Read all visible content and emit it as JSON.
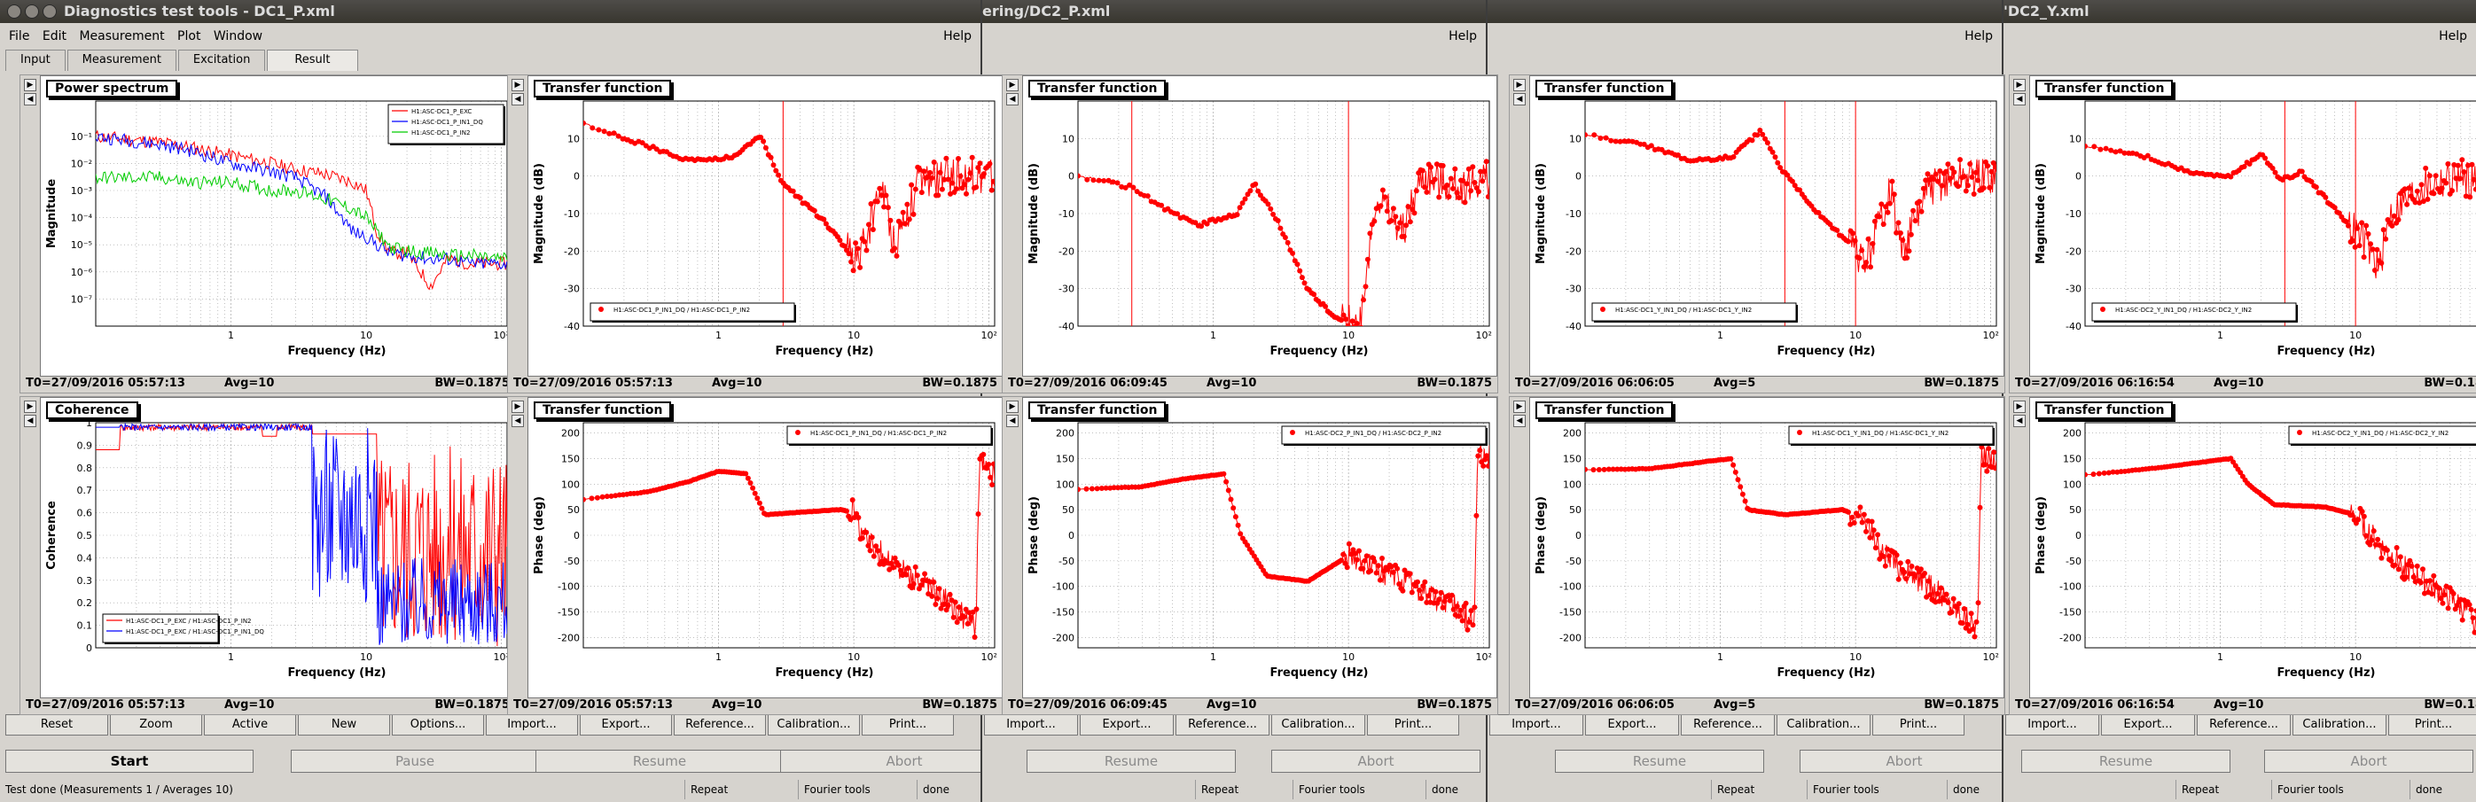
{
  "windows": [
    {
      "title": "Diagnostics test tools - DC1_P.xml",
      "menu": [
        "File",
        "Edit",
        "Measurement",
        "Plot",
        "Window"
      ],
      "help": "Help",
      "tabs": [
        "Input",
        "Measurement",
        "Excitation",
        "Result"
      ],
      "buttons": [
        "Reset",
        "Zoom",
        "Active",
        "New",
        "Options...",
        "Import...",
        "Export...",
        "Reference...",
        "Calibration...",
        "Print..."
      ],
      "controls": [
        "Start",
        "Pause",
        "Resume",
        "Abort"
      ],
      "status": {
        "text": "Test done (Measurements 1 / Averages 10)",
        "repeat": "Repeat",
        "fourier": "Fourier tools",
        "done": "done"
      }
    },
    {
      "title": "ering/DC2_P.xml",
      "help": "Help",
      "buttons": [
        "Import...",
        "Export...",
        "Reference...",
        "Calibration...",
        "Print..."
      ],
      "controls": [
        "Resume",
        "Abort"
      ],
      "status": {
        "repeat": "Repeat",
        "fourier": "Fourier tools",
        "done": "done"
      }
    },
    {
      "title": "",
      "help": "Help",
      "buttons": [
        "Import...",
        "Export...",
        "Reference...",
        "Calibration...",
        "Print..."
      ],
      "controls": [
        "Resume",
        "Abort"
      ],
      "status": {
        "repeat": "Repeat",
        "fourier": "Fourier tools",
        "done": "done"
      }
    },
    {
      "title": "'DC2_Y.xml",
      "help": "Help",
      "buttons": [
        "Import...",
        "Export...",
        "Reference...",
        "Calibration...",
        "Print..."
      ],
      "controls": [
        "Resume",
        "Abort"
      ],
      "status": {
        "repeat": "Repeat",
        "fourier": "Fourier tools",
        "done": "done"
      }
    }
  ],
  "panels": [
    {
      "title": "Power spectrum",
      "t0": "T0=27/09/2016 05:57:13",
      "avg": "Avg=10",
      "bw": "BW=0.1875"
    },
    {
      "title": "Coherence",
      "t0": "T0=27/09/2016 05:57:13",
      "avg": "Avg=10",
      "bw": "BW=0.1875"
    },
    {
      "title": "Transfer function",
      "t0": "T0=27/09/2016 05:57:13",
      "avg": "Avg=10",
      "bw": "BW=0.1875"
    },
    {
      "title": "Transfer function",
      "t0": "T0=27/09/2016 05:57:13",
      "avg": "Avg=10",
      "bw": "BW=0.1875"
    },
    {
      "title": "Transfer function",
      "t0": "T0=27/09/2016 06:09:45",
      "avg": "Avg=10",
      "bw": "BW=0.1875"
    },
    {
      "title": "Transfer function",
      "t0": "T0=27/09/2016 06:09:45",
      "avg": "Avg=10",
      "bw": "BW=0.1875"
    },
    {
      "title": "Transfer function",
      "t0": "T0=27/09/2016 06:06:05",
      "avg": "Avg=5",
      "bw": "BW=0.1875"
    },
    {
      "title": "Transfer function",
      "t0": "T0=27/09/2016 06:06:05",
      "avg": "Avg=5",
      "bw": "BW=0.1875"
    },
    {
      "title": "Transfer function",
      "t0": "T0=27/09/2016 06:16:54",
      "avg": "Avg=10",
      "bw": "BW=0.1875"
    },
    {
      "title": "Transfer function",
      "t0": "T0=27/09/2016 06:16:54",
      "avg": "Avg=10",
      "bw": "BW=0.1875"
    }
  ],
  "colors": {
    "red": "#ff0000",
    "blue": "#0000ff",
    "green": "#00cc00"
  },
  "chart_data": [
    {
      "type": "line",
      "title": "Power spectrum",
      "xlabel": "Frequency (Hz)",
      "ylabel": "Magnitude",
      "xscale": "log",
      "yscale": "log",
      "xlim": [
        0.1,
        110
      ],
      "ylim": [
        1e-08,
        2
      ],
      "yticks": [
        "10⁻⁷",
        "10⁻⁶",
        "10⁻⁵",
        "10⁻⁴",
        "10⁻³",
        "10⁻²",
        "10⁻¹"
      ],
      "xticks": [
        "1",
        "10",
        "10²"
      ],
      "legend": "top-right",
      "series": [
        {
          "name": "H1:ASC-DC1_P_EXC",
          "color": "#ff0000",
          "x": [
            0.1,
            0.3,
            0.5,
            1,
            2,
            3,
            5,
            8,
            10,
            12,
            15,
            20,
            30,
            40,
            60,
            100
          ],
          "y": [
            0.1,
            0.06,
            0.04,
            0.02,
            0.01,
            0.006,
            0.004,
            0.002,
            0.001,
            3e-05,
            5e-06,
            5e-06,
            3e-07,
            3e-06,
            2e-06,
            2e-06
          ]
        },
        {
          "name": "H1:ASC-DC1_P_IN1_DQ",
          "color": "#0000ff",
          "x": [
            0.1,
            0.3,
            0.5,
            1,
            2,
            3,
            5,
            8,
            10,
            12,
            15,
            20,
            30,
            40,
            60,
            100
          ],
          "y": [
            0.1,
            0.05,
            0.03,
            0.01,
            0.005,
            0.003,
            0.0006,
            3e-05,
            2e-05,
            1e-05,
            5e-06,
            4e-06,
            3e-06,
            3e-06,
            2e-06,
            2e-06
          ]
        },
        {
          "name": "H1:ASC-DC1_P_IN2",
          "color": "#00cc00",
          "x": [
            0.1,
            0.3,
            0.5,
            1,
            2,
            3,
            5,
            8,
            10,
            12,
            15,
            20,
            30,
            40,
            60,
            100
          ],
          "y": [
            0.003,
            0.003,
            0.002,
            0.002,
            0.001,
            0.001,
            0.0005,
            0.0002,
            0.0001,
            3e-05,
            8e-06,
            6e-06,
            5e-06,
            4e-06,
            4e-06,
            3e-06
          ]
        }
      ]
    },
    {
      "type": "line",
      "title": "Coherence",
      "xlabel": "Frequency (Hz)",
      "ylabel": "Coherence",
      "xscale": "log",
      "xlim": [
        0.1,
        110
      ],
      "ylim": [
        0,
        1
      ],
      "yticks": [
        "0",
        "0.1",
        "0.2",
        "0.3",
        "0.4",
        "0.5",
        "0.6",
        "0.7",
        "0.8",
        "0.9",
        "1"
      ],
      "xticks": [
        "1",
        "10",
        "10²"
      ],
      "legend": "bottom-left",
      "series": [
        {
          "name": "H1:ASC-DC1_P_EXC / H1:ASC-DC1_P_IN2",
          "color": "#ff0000"
        },
        {
          "name": "H1:ASC-DC1_P_EXC / H1:ASC-DC1_P_IN1_DQ",
          "color": "#0000ff"
        }
      ]
    },
    {
      "type": "scatter",
      "title": "Transfer function",
      "xlabel": "Frequency (Hz)",
      "ylabel": "Magnitude (dB)",
      "xscale": "log",
      "xlim": [
        0.1,
        110
      ],
      "ylim": [
        -40,
        20
      ],
      "yticks": [
        "-40",
        "-30",
        "-20",
        "-10",
        "0",
        "10"
      ],
      "xticks": [
        "1",
        "10",
        "10²"
      ],
      "legend": "bottom-left",
      "series": [
        {
          "name": "H1:ASC-DC1_P_IN1_DQ / H1:ASC-DC1_P_IN2",
          "color": "#ff0000"
        }
      ]
    },
    {
      "type": "scatter",
      "title": "Transfer function",
      "xlabel": "Frequency (Hz)",
      "ylabel": "Phase (deg)",
      "xscale": "log",
      "xlim": [
        0.1,
        110
      ],
      "ylim": [
        -220,
        220
      ],
      "yticks": [
        "-200",
        "-150",
        "-100",
        "-50",
        "0",
        "50",
        "100",
        "150",
        "200"
      ],
      "xticks": [
        "1",
        "10",
        "10²"
      ],
      "legend": "top-right",
      "series": [
        {
          "name": "H1:ASC-DC1_P_IN1_DQ / H1:ASC-DC1_P_IN2",
          "color": "#ff0000"
        }
      ]
    },
    {
      "type": "scatter",
      "title": "Transfer function",
      "xlabel": "Frequency (Hz)",
      "ylabel": "Magnitude (dB)",
      "xscale": "log",
      "xlim": [
        0.1,
        110
      ],
      "ylim": [
        -40,
        20
      ],
      "yticks": [
        "-40",
        "-30",
        "-20",
        "-10",
        "0",
        "10"
      ],
      "xticks": [
        "1",
        "10",
        "10²"
      ],
      "series": []
    },
    {
      "type": "scatter",
      "title": "Transfer function",
      "xlabel": "Frequency (Hz)",
      "ylabel": "Phase (deg)",
      "xscale": "log",
      "xlim": [
        0.1,
        110
      ],
      "ylim": [
        -220,
        220
      ],
      "yticks": [
        "-200",
        "-150",
        "-100",
        "-50",
        "0",
        "50",
        "100",
        "150",
        "200"
      ],
      "xticks": [
        "1",
        "10",
        "10²"
      ],
      "legend": "top-right",
      "series": [
        {
          "name": "H1:ASC-DC2_P_IN1_DQ / H1:ASC-DC2_P_IN2",
          "color": "#ff0000"
        }
      ]
    },
    {
      "type": "scatter",
      "title": "Transfer function",
      "xlabel": "Frequency (Hz)",
      "ylabel": "Magnitude (dB)",
      "xscale": "log",
      "xlim": [
        0.1,
        110
      ],
      "ylim": [
        -40,
        20
      ],
      "yticks": [
        "-40",
        "-30",
        "-20",
        "-10",
        "0",
        "10"
      ],
      "xticks": [
        "1",
        "10",
        "10²"
      ],
      "legend": "bottom-left",
      "series": [
        {
          "name": "H1:ASC-DC1_Y_IN1_DQ / H1:ASC-DC1_Y_IN2",
          "color": "#ff0000"
        }
      ]
    },
    {
      "type": "scatter",
      "title": "Transfer function",
      "xlabel": "Frequency (Hz)",
      "ylabel": "Phase (deg)",
      "xscale": "log",
      "xlim": [
        0.1,
        110
      ],
      "ylim": [
        -220,
        220
      ],
      "yticks": [
        "-200",
        "-150",
        "-100",
        "-50",
        "0",
        "50",
        "100",
        "150",
        "200"
      ],
      "xticks": [
        "1",
        "10",
        "10²"
      ],
      "legend": "top-right",
      "series": [
        {
          "name": "H1:ASC-DC1_Y_IN1_DQ / H1:ASC-DC1_Y_IN2",
          "color": "#ff0000"
        }
      ]
    },
    {
      "type": "scatter",
      "title": "Transfer function",
      "xlabel": "Frequency (Hz)",
      "ylabel": "Magnitude (dB)",
      "xscale": "log",
      "xlim": [
        0.1,
        110
      ],
      "ylim": [
        -40,
        20
      ],
      "yticks": [
        "-40",
        "-30",
        "-20",
        "-10",
        "0",
        "10"
      ],
      "xticks": [
        "1",
        "10",
        "10²"
      ],
      "legend": "bottom-left",
      "series": [
        {
          "name": "H1:ASC-DC2_Y_IN1_DQ / H1:ASC-DC2_Y_IN2",
          "color": "#ff0000"
        }
      ]
    },
    {
      "type": "scatter",
      "title": "Transfer function",
      "xlabel": "Frequency (Hz)",
      "ylabel": "Phase (deg)",
      "xscale": "log",
      "xlim": [
        0.1,
        110
      ],
      "ylim": [
        -220,
        220
      ],
      "yticks": [
        "-200",
        "-150",
        "-100",
        "-50",
        "0",
        "50",
        "100",
        "150",
        "200"
      ],
      "xticks": [
        "1",
        "10",
        "10²"
      ],
      "legend": "top-right",
      "series": [
        {
          "name": "H1:ASC-DC2_Y_IN1_DQ / H1:ASC-DC2_Y_IN2",
          "color": "#ff0000"
        }
      ]
    }
  ]
}
